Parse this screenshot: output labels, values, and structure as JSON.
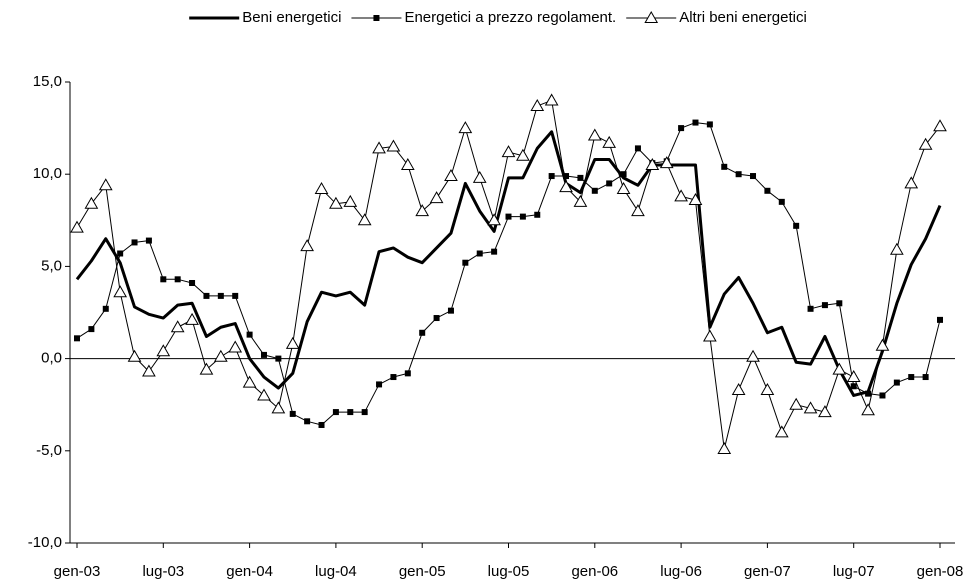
{
  "chart_data": {
    "type": "line",
    "categories": [
      "gen-03",
      null,
      null,
      null,
      null,
      null,
      "lug-03",
      null,
      null,
      null,
      null,
      null,
      "gen-04",
      null,
      null,
      null,
      null,
      null,
      "lug-04",
      null,
      null,
      null,
      null,
      null,
      "gen-05",
      null,
      null,
      null,
      null,
      null,
      "lug-05",
      null,
      null,
      null,
      null,
      null,
      "gen-06",
      null,
      null,
      null,
      null,
      null,
      "lug-06",
      null,
      null,
      null,
      null,
      null,
      "gen-07",
      null,
      null,
      null,
      null,
      null,
      "lug-07",
      null,
      null,
      null,
      null,
      null,
      "gen-08"
    ],
    "series": [
      {
        "name": "Beni energetici",
        "color": "#000000",
        "marker": "none",
        "values": [
          4.3,
          5.3,
          6.5,
          5.2,
          2.8,
          2.4,
          2.2,
          2.9,
          3.0,
          1.2,
          1.7,
          1.9,
          0.0,
          -1.0,
          -1.6,
          -0.8,
          2.0,
          3.6,
          3.4,
          3.6,
          2.9,
          5.8,
          6.0,
          5.5,
          5.2,
          6.0,
          6.8,
          9.5,
          8.0,
          6.9,
          9.8,
          9.8,
          11.4,
          12.3,
          9.5,
          9.0,
          10.8,
          10.8,
          9.8,
          9.4,
          10.5,
          10.5,
          10.5,
          10.5,
          1.7,
          3.5,
          4.4,
          3.0,
          1.4,
          1.7,
          -0.2,
          -0.3,
          1.2,
          -0.6,
          -2.0,
          -1.8,
          0.4,
          3.0,
          5.1,
          6.5,
          8.3
        ]
      },
      {
        "name": "Energetici a prezzo regolament.",
        "color": "#000000",
        "marker": "square",
        "values": [
          1.1,
          1.6,
          2.7,
          5.7,
          6.3,
          6.4,
          4.3,
          4.3,
          4.1,
          3.4,
          3.4,
          3.4,
          1.3,
          0.2,
          0.0,
          -3.0,
          -3.4,
          -3.6,
          -2.9,
          -2.9,
          -2.9,
          -1.4,
          -1.0,
          -0.8,
          1.4,
          2.2,
          2.6,
          5.2,
          5.7,
          5.8,
          7.7,
          7.7,
          7.8,
          9.9,
          9.9,
          9.8,
          9.1,
          9.5,
          10.0,
          11.4,
          10.6,
          10.7,
          12.5,
          12.8,
          12.7,
          10.4,
          10.0,
          9.9,
          9.1,
          8.5,
          7.2,
          2.7,
          2.9,
          3.0,
          -1.5,
          -1.9,
          -2.0,
          -1.3,
          -1.0,
          -1.0,
          2.1
        ]
      },
      {
        "name": "Altri beni energetici",
        "color": "#000000",
        "marker": "triangle",
        "values": [
          7.1,
          8.4,
          9.4,
          3.6,
          0.1,
          -0.7,
          0.4,
          1.7,
          2.1,
          -0.6,
          0.1,
          0.6,
          -1.3,
          -2.0,
          -2.7,
          0.8,
          6.1,
          9.2,
          8.4,
          8.5,
          7.5,
          11.4,
          11.5,
          10.5,
          8.0,
          8.7,
          9.9,
          12.5,
          9.8,
          7.5,
          11.2,
          11.0,
          13.7,
          14.0,
          9.3,
          8.5,
          12.1,
          11.7,
          9.2,
          8.0,
          10.5,
          10.6,
          8.8,
          8.6,
          1.2,
          -4.9,
          -1.7,
          0.1,
          -1.7,
          -4.0,
          -2.5,
          -2.7,
          -2.9,
          -0.6,
          -1.0,
          -2.8,
          0.7,
          5.9,
          9.5,
          11.6,
          12.6
        ]
      }
    ],
    "ylim": [
      -10,
      15
    ],
    "yticks": [
      {
        "value": -10,
        "label": "-10,0"
      },
      {
        "value": -5,
        "label": "-5,0"
      },
      {
        "value": 0,
        "label": "0,0"
      },
      {
        "value": 5,
        "label": "5,0"
      },
      {
        "value": 10,
        "label": "10,0"
      },
      {
        "value": 15,
        "label": "15,0"
      }
    ],
    "grid": false,
    "legend": "top"
  }
}
